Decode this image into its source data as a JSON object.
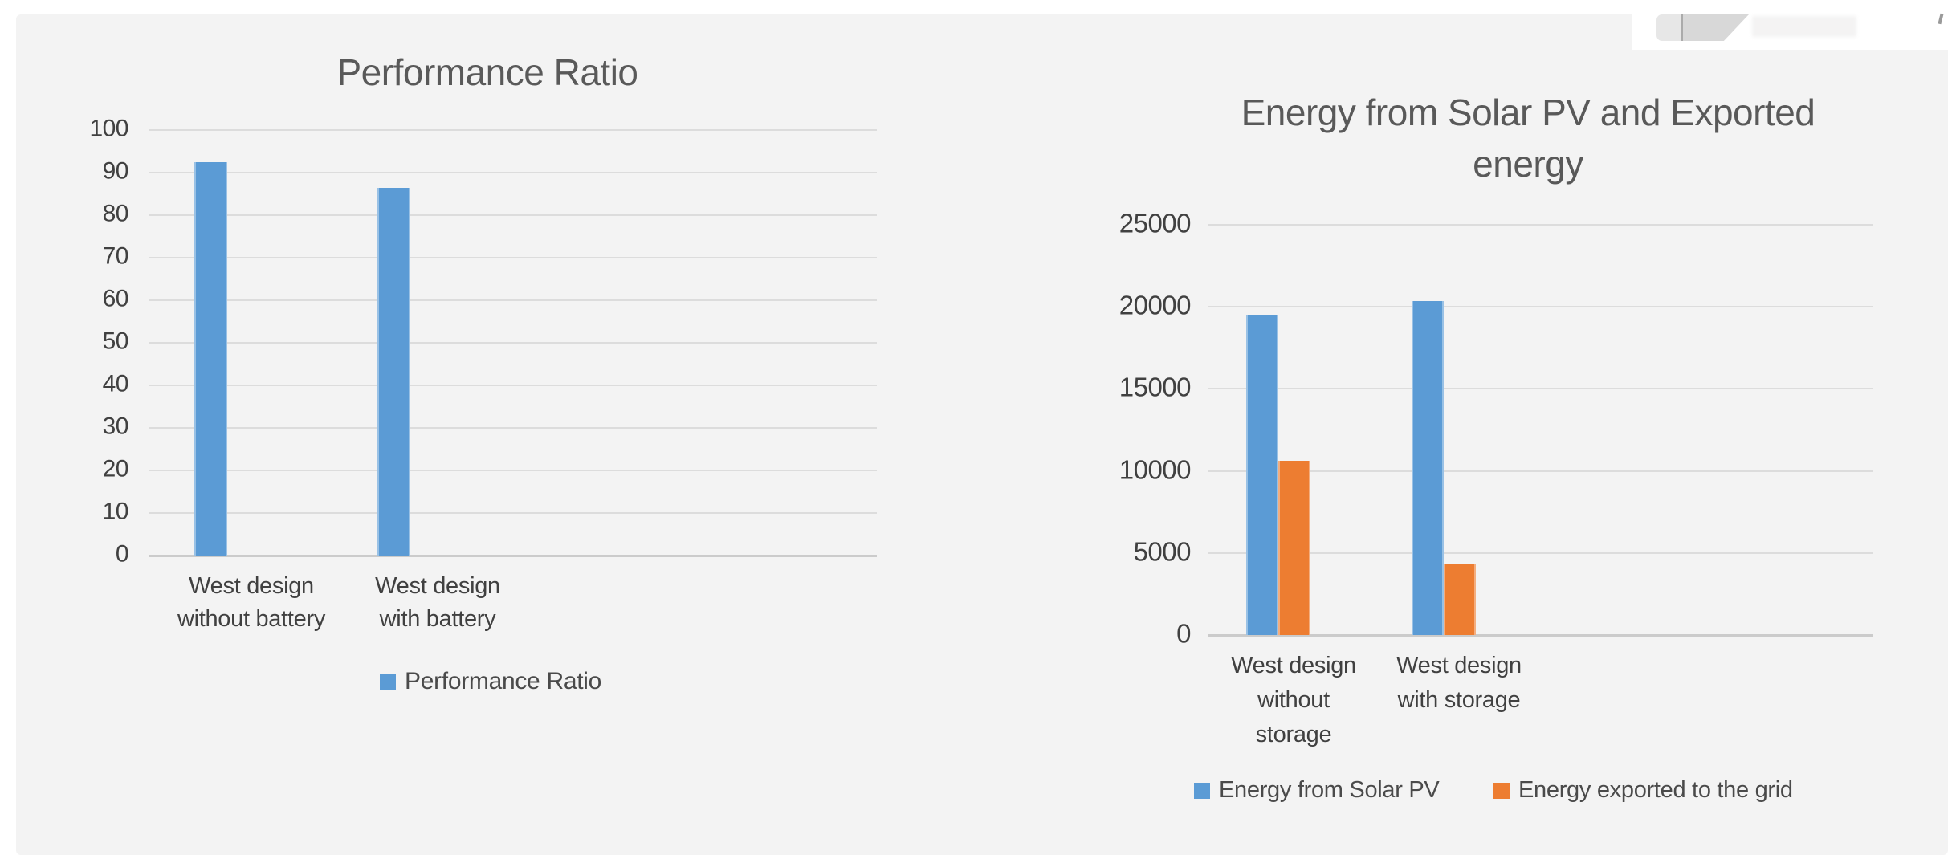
{
  "page": {
    "background": "#ffffff",
    "panel_color": "#f3f3f3"
  },
  "chart_data": [
    {
      "type": "bar",
      "title": "Performance Ratio",
      "categories": [
        "West design without battery",
        "West design with battery"
      ],
      "category_lines": [
        [
          "West design",
          "without battery"
        ],
        [
          "West design",
          "with battery"
        ]
      ],
      "series": [
        {
          "name": "Performance Ratio",
          "color": "#5b9bd5",
          "values": [
            92.5,
            86.4
          ]
        }
      ],
      "ylim": [
        0,
        100
      ],
      "yticks": [
        0,
        10,
        20,
        30,
        40,
        50,
        60,
        70,
        80,
        90,
        100
      ],
      "grid": true,
      "legend_position": "bottom",
      "legend_labels": [
        "Performance Ratio"
      ]
    },
    {
      "type": "bar",
      "title": "Energy from Solar PV and Exported energy",
      "title_lines": [
        "Energy from Solar PV and Exported",
        "energy"
      ],
      "categories": [
        "West design without storage",
        "West design with storage"
      ],
      "category_lines": [
        [
          "West design",
          "without",
          "storage"
        ],
        [
          "West design",
          "with storage"
        ]
      ],
      "series": [
        {
          "name": "Energy from Solar PV",
          "color": "#5b9bd5",
          "values": [
            19450,
            20330
          ]
        },
        {
          "name": "Energy exported to the grid",
          "color": "#ed7d31",
          "values": [
            10610,
            4300
          ]
        }
      ],
      "ylim": [
        0,
        25000
      ],
      "yticks": [
        0,
        5000,
        10000,
        15000,
        20000,
        25000
      ],
      "grid": true,
      "legend_position": "bottom",
      "legend_labels": [
        "Energy from Solar PV",
        "Energy exported to the grid"
      ]
    }
  ]
}
